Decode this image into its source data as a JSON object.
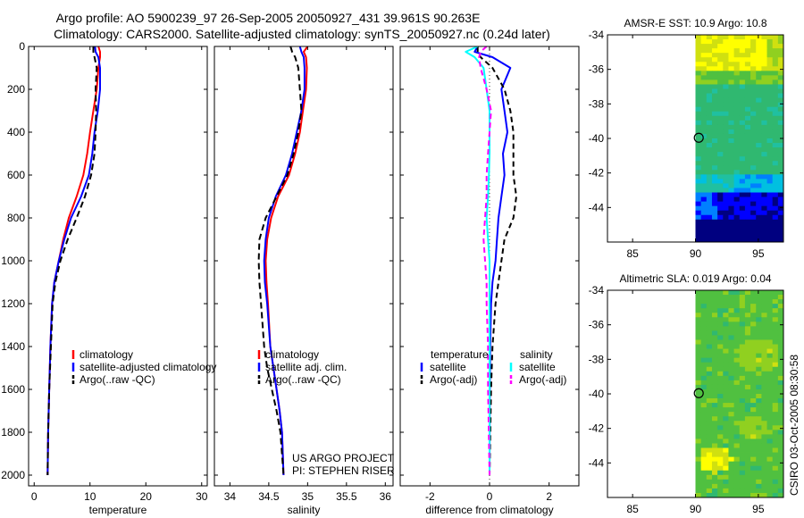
{
  "title_line1": "Argo profile: AO 5900239_97 26-Sep-2005 20050927_431 39.961S 90.263E",
  "title_line2": "Climatology: CARS2000. Satellite-adjusted climatology: synTS_20050927.nc (0.24d later)",
  "side_label": "CSIRO 03-Oct-2005 08:30:58",
  "colors": {
    "red": "#ff0000",
    "blue": "#0000ff",
    "black": "#000000",
    "cyan": "#00ffff",
    "magenta": "#ff00ff"
  },
  "chart_data": [
    {
      "type": "line",
      "id": "temperature",
      "xlabel": "temperature",
      "xlim": [
        -1,
        31
      ],
      "ylim": [
        0,
        2050
      ],
      "xticks": [
        0,
        10,
        20,
        30
      ],
      "xticklabels": [
        "0",
        "10",
        "20",
        "30"
      ],
      "yticks": [
        0,
        200,
        400,
        600,
        800,
        1000,
        1200,
        1400,
        1600,
        1800,
        2000
      ],
      "yticklabels": [
        "0",
        "200",
        "400",
        "600",
        "800",
        "1000",
        "1200",
        "1400",
        "1600",
        "1800",
        "2000"
      ],
      "series": [
        {
          "name": "climatology",
          "color": "#ff0000",
          "dash": "",
          "x": [
            11.5,
            11.8,
            11.8,
            11.5,
            11.2,
            10.6,
            10.0,
            9.5,
            8.8,
            7.6,
            6.2,
            5.2,
            4.4,
            3.6,
            3.2,
            2.9,
            2.7,
            2.5,
            2.4
          ],
          "y": [
            0,
            25,
            50,
            100,
            200,
            300,
            400,
            500,
            600,
            700,
            800,
            900,
            1000,
            1100,
            1200,
            1400,
            1600,
            1800,
            2000
          ]
        },
        {
          "name": "satellite-adjusted climatology",
          "color": "#0000ff",
          "dash": "",
          "x": [
            10.9,
            11.0,
            11.5,
            11.8,
            11.8,
            11.4,
            10.8,
            10.4,
            9.8,
            8.4,
            6.6,
            5.4,
            4.4,
            3.6,
            3.2,
            2.9,
            2.7,
            2.5,
            2.4
          ],
          "y": [
            0,
            25,
            50,
            100,
            200,
            300,
            400,
            500,
            600,
            700,
            800,
            900,
            1000,
            1100,
            1200,
            1400,
            1600,
            1800,
            2000
          ]
        },
        {
          "name": "Argo(..raw -QC)",
          "color": "#000000",
          "dash": "7,4",
          "x": [
            10.6,
            10.6,
            10.8,
            11.2,
            11.0,
            11.1,
            11.0,
            10.8,
            10.2,
            9.1,
            7.6,
            6.0,
            4.7,
            3.8,
            3.3,
            3.0,
            2.7,
            2.5,
            2.4
          ],
          "y": [
            0,
            25,
            50,
            100,
            200,
            300,
            400,
            500,
            600,
            700,
            800,
            900,
            1000,
            1100,
            1200,
            1400,
            1600,
            1800,
            2000
          ]
        }
      ],
      "legend": [
        {
          "label": "climatology",
          "color": "#ff0000",
          "dash": ""
        },
        {
          "label": "satellite-adjusted climatology",
          "color": "#0000ff",
          "dash": ""
        },
        {
          "label": "Argo(..raw -QC)",
          "color": "#000000",
          "dash": "7,4"
        }
      ]
    },
    {
      "type": "line",
      "id": "salinity",
      "xlabel": "salinity",
      "xlim": [
        33.8,
        36.1
      ],
      "ylim": [
        0,
        2050
      ],
      "xticks": [
        34,
        34.5,
        35,
        35.5,
        36
      ],
      "xticklabels": [
        "34",
        "34.5",
        "35",
        "35.5",
        "36"
      ],
      "series": [
        {
          "name": "climatology",
          "color": "#ff0000",
          "dash": "",
          "x": [
            35.0,
            34.95,
            34.98,
            34.99,
            34.98,
            34.94,
            34.9,
            34.84,
            34.76,
            34.62,
            34.53,
            34.48,
            34.46,
            34.47,
            34.49,
            34.52,
            34.56,
            34.6,
            34.64,
            34.67,
            34.69
          ],
          "y": [
            0,
            25,
            50,
            100,
            200,
            300,
            400,
            500,
            600,
            700,
            800,
            900,
            1000,
            1100,
            1200,
            1400,
            1500,
            1600,
            1700,
            1800,
            2000
          ]
        },
        {
          "name": "satellite adj. clim.",
          "color": "#0000ff",
          "dash": "",
          "x": [
            34.9,
            34.92,
            34.95,
            34.96,
            34.96,
            34.92,
            34.86,
            34.8,
            34.72,
            34.59,
            34.5,
            34.46,
            34.44,
            34.45,
            34.48,
            34.52,
            34.56,
            34.6,
            34.64,
            34.67,
            34.69
          ],
          "y": [
            0,
            25,
            50,
            100,
            200,
            300,
            400,
            500,
            600,
            700,
            800,
            900,
            1000,
            1100,
            1200,
            1400,
            1500,
            1600,
            1700,
            1800,
            2000
          ]
        },
        {
          "name": "Argo(..raw -QC)",
          "color": "#000000",
          "dash": "7,4",
          "x": [
            34.78,
            34.8,
            34.84,
            34.88,
            34.9,
            34.92,
            34.88,
            34.82,
            34.74,
            34.6,
            34.46,
            34.38,
            34.37,
            34.38,
            34.4,
            34.44,
            34.48,
            34.54,
            34.6,
            34.65,
            34.69
          ],
          "y": [
            0,
            25,
            50,
            100,
            200,
            300,
            400,
            500,
            600,
            700,
            800,
            900,
            1000,
            1100,
            1200,
            1400,
            1500,
            1600,
            1700,
            1800,
            2000
          ]
        }
      ],
      "legend": [
        {
          "label": "climatology",
          "color": "#ff0000",
          "dash": ""
        },
        {
          "label": "satellite adj. clim.",
          "color": "#0000ff",
          "dash": ""
        },
        {
          "label": "Argo(..raw -QC)",
          "color": "#000000",
          "dash": "7,4"
        }
      ],
      "annotation": [
        "US ARGO PROJECT",
        "PI: STEPHEN RISER"
      ]
    },
    {
      "type": "line",
      "id": "difference",
      "xlabel": "difference from climatology",
      "xlim": [
        -3,
        3
      ],
      "ylim": [
        0,
        2050
      ],
      "xticks": [
        -2,
        0,
        2
      ],
      "xticklabels": [
        "-2",
        "0",
        "2"
      ],
      "series": [
        {
          "name": "temperature satellite",
          "color": "#0000ff",
          "dash": "",
          "x": [
            -0.4,
            -0.5,
            0.1,
            0.7,
            0.4,
            0.5,
            0.6,
            0.45,
            0.5,
            0.4,
            0.3,
            0.25,
            0.2,
            0.1,
            0.05,
            0.02,
            0.01,
            0.0
          ],
          "y": [
            0,
            25,
            50,
            100,
            200,
            300,
            400,
            500,
            600,
            700,
            800,
            900,
            1000,
            1100,
            1200,
            1400,
            1600,
            2000
          ]
        },
        {
          "name": "temperature Argo(-adj)",
          "color": "#000000",
          "dash": "6,4",
          "x": [
            -0.4,
            -0.4,
            -0.3,
            0.1,
            0.5,
            0.7,
            0.8,
            0.8,
            0.8,
            0.9,
            0.8,
            0.5,
            0.4,
            0.3,
            0.2,
            0.1,
            0.05,
            0.0
          ],
          "y": [
            0,
            25,
            50,
            100,
            200,
            300,
            400,
            500,
            600,
            700,
            800,
            900,
            1000,
            1100,
            1200,
            1400,
            1600,
            2000
          ]
        },
        {
          "name": "salinity satellite",
          "color": "#00ffff",
          "dash": "",
          "x": [
            -0.4,
            -0.8,
            -0.5,
            -0.2,
            -0.1,
            0.0,
            0.0,
            0.0,
            -0.02,
            -0.05,
            -0.1,
            -0.05,
            0.0,
            0.0,
            0.0,
            0.0,
            0.0,
            0.0
          ],
          "y": [
            0,
            25,
            50,
            100,
            200,
            300,
            400,
            500,
            600,
            700,
            800,
            900,
            1000,
            1100,
            1200,
            1400,
            1600,
            2000
          ]
        },
        {
          "name": "salinity Argo(-adj)",
          "color": "#ff00ff",
          "dash": "6,4",
          "x": [
            -0.1,
            -0.3,
            -0.35,
            -0.3,
            -0.1,
            0.05,
            0.0,
            -0.05,
            -0.1,
            -0.1,
            -0.15,
            -0.2,
            -0.15,
            -0.1,
            -0.1,
            -0.05,
            -0.05,
            0.0
          ],
          "y": [
            0,
            25,
            50,
            100,
            200,
            300,
            400,
            500,
            600,
            700,
            800,
            900,
            1000,
            1100,
            1200,
            1400,
            1600,
            2000
          ]
        }
      ],
      "legend_headers": [
        "temperature",
        "salinity"
      ],
      "legend": [
        {
          "label": "satellite",
          "color": "#0000ff",
          "dash": ""
        },
        {
          "label": "Argo(-adj)",
          "color": "#000000",
          "dash": "6,4"
        },
        {
          "label": "satellite",
          "color": "#00ffff",
          "dash": ""
        },
        {
          "label": "Argo(-adj)",
          "color": "#ff00ff",
          "dash": "6,4"
        }
      ]
    },
    {
      "type": "heatmap",
      "id": "sst_map",
      "title": "AMSR-E SST: 10.9 Argo: 10.8",
      "xlim": [
        83,
        97
      ],
      "ylim": [
        -46,
        -34
      ],
      "xticks": [
        85,
        90,
        95
      ],
      "xticklabels": [
        "85",
        "90",
        "95"
      ],
      "yticks": [
        -34,
        -36,
        -38,
        -40,
        -42,
        -44
      ],
      "yticklabels": [
        "-34",
        "-36",
        "-38",
        "-40",
        "-42",
        "-44"
      ],
      "data_lon_start": 90,
      "marker": {
        "lon": 90.263,
        "lat": -39.961
      },
      "palette": [
        "#000080",
        "#0000ff",
        "#0080ff",
        "#00c0e0",
        "#20c0a0",
        "#30b870",
        "#50c040",
        "#90d020",
        "#d0e010",
        "#ffff00"
      ],
      "bands": [
        {
          "lat_top": -34,
          "lat_bottom": -36,
          "level": 8
        },
        {
          "lat_top": -36,
          "lat_bottom": -42,
          "level": 5
        },
        {
          "lat_top": -42,
          "lat_bottom": -43.5,
          "level": 3
        },
        {
          "lat_top": -43.5,
          "lat_bottom": -45,
          "level": 1
        },
        {
          "lat_top": -45,
          "lat_bottom": -46,
          "level": 0
        }
      ]
    },
    {
      "type": "heatmap",
      "id": "sla_map",
      "title": "Altimetric SLA: 0.019 Argo: 0.04",
      "xlim": [
        83,
        97
      ],
      "ylim": [
        -46,
        -34
      ],
      "xticks": [
        85,
        90,
        95
      ],
      "xticklabels": [
        "85",
        "90",
        "95"
      ],
      "yticks": [
        -34,
        -36,
        -38,
        -40,
        -42,
        -44
      ],
      "yticklabels": [
        "-34",
        "-36",
        "-38",
        "-40",
        "-42",
        "-44"
      ],
      "data_lon_start": 90,
      "marker": {
        "lon": 90.263,
        "lat": -39.961
      },
      "palette": [
        "#000080",
        "#0000ff",
        "#0080ff",
        "#00c0e0",
        "#20c0a0",
        "#30b870",
        "#50c040",
        "#90d020",
        "#d0e010",
        "#ffff00"
      ],
      "bands": [
        {
          "lat_top": -34,
          "lat_bottom": -46,
          "level": 6
        }
      ]
    }
  ]
}
